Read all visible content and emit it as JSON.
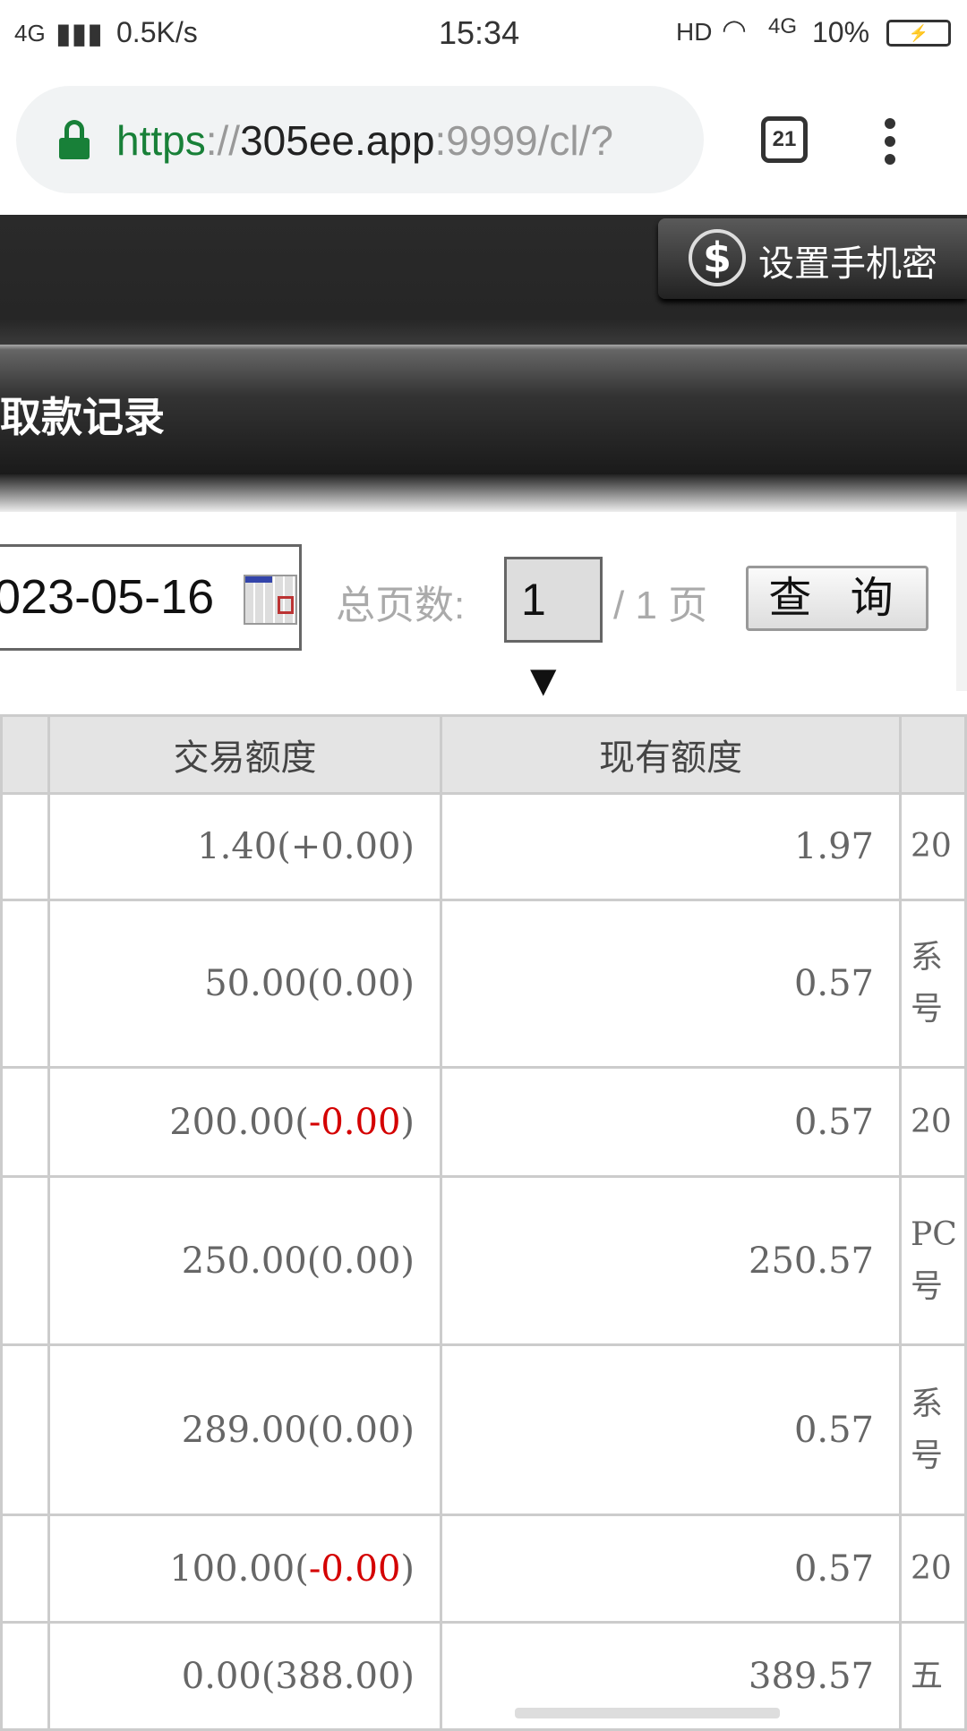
{
  "status_bar": {
    "network": "4G",
    "speed": "0.5K/s",
    "time": "15:34",
    "hd": "HD",
    "network2": "4G",
    "battery": "10%"
  },
  "browser": {
    "url_scheme": "https",
    "url_sep": "://",
    "url_host": "305ee.app",
    "url_rest": ":9999/cl/?",
    "tab_count": "21"
  },
  "header": {
    "set_phone_password": "设置手机密",
    "page_title": "取款记录"
  },
  "filters": {
    "end_date": "023-05-16",
    "total_pages_label": "总页数:",
    "page_selected": "1 ▼",
    "of_pages": "/ 1 页",
    "query_button": "查 询"
  },
  "table": {
    "columns": [
      "",
      "交易额度",
      "现有额度",
      ""
    ],
    "rows": [
      {
        "amount": "1.40",
        "adj": "(+0.00)",
        "adj_red": false,
        "balance": "1.97",
        "note": [
          "20"
        ]
      },
      {
        "amount": "50.00",
        "adj": "(0.00)",
        "adj_red": false,
        "balance": "0.57",
        "note": [
          "系",
          "号"
        ]
      },
      {
        "amount": "200.00",
        "adj": "-0.00",
        "adj_red": true,
        "balance": "0.57",
        "note": [
          "20"
        ]
      },
      {
        "amount": "250.00",
        "adj": "(0.00)",
        "adj_red": false,
        "balance": "250.57",
        "note": [
          "PC",
          "号"
        ]
      },
      {
        "amount": "289.00",
        "adj": "(0.00)",
        "adj_red": false,
        "balance": "0.57",
        "note": [
          "系",
          "号"
        ]
      },
      {
        "amount": "100.00",
        "adj": "-0.00",
        "adj_red": true,
        "balance": "0.57",
        "note": [
          "20"
        ]
      },
      {
        "amount": "0.00",
        "adj": "(388.00)",
        "adj_red": false,
        "balance": "389.57",
        "note": [
          "五"
        ]
      }
    ]
  },
  "colors": {
    "secure": "#188038",
    "negative": "#d40000"
  }
}
